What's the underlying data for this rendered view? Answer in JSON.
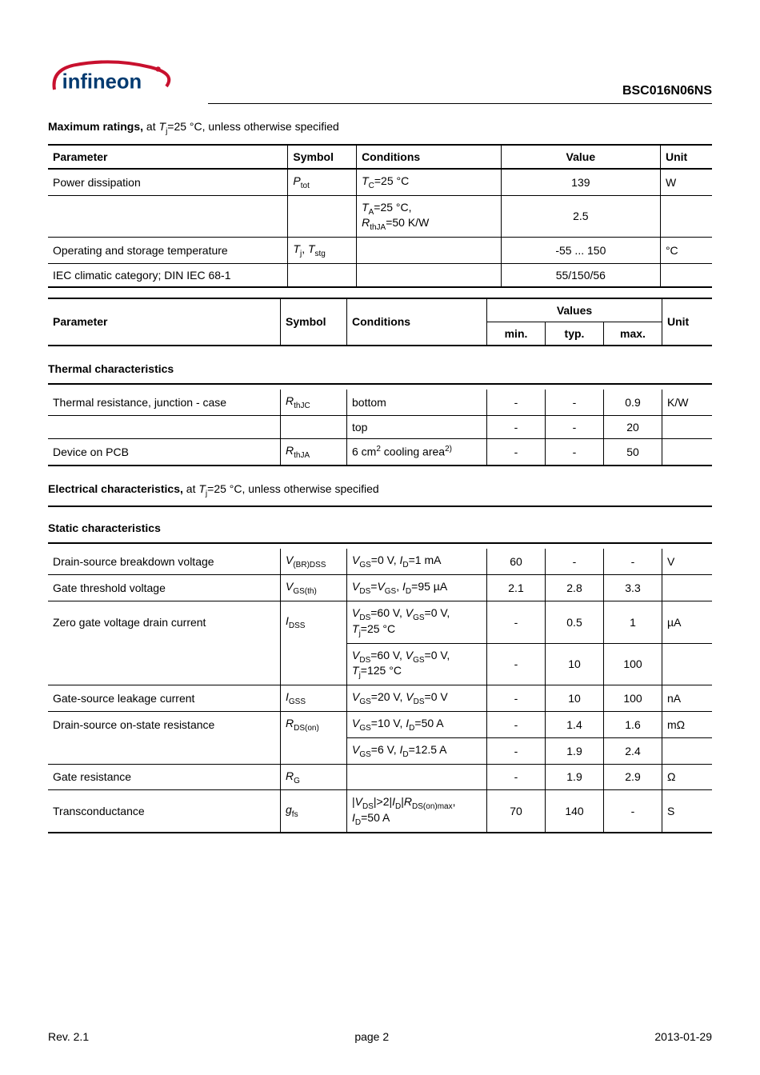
{
  "header": {
    "partnum": "BSC016N06NS"
  },
  "section_maxratings": {
    "title_b": "Maximum ratings,",
    "title_rest": " at ",
    "title_sym": "T",
    "title_sub": "j",
    "title_after": "=25 °C, unless otherwise specified",
    "cols": {
      "parameter": "Parameter",
      "symbol": "Symbol",
      "conditions": "Conditions",
      "value": "Value",
      "unit": "Unit"
    },
    "rows": [
      {
        "param": "Power dissipation",
        "sym_i": "P",
        "sym_sub": "tot",
        "cond_html": "<span class='ital'>T</span><span class='sub'>C</span>=25 °C",
        "value": "139",
        "unit": "W"
      },
      {
        "param": "",
        "sym_i": "",
        "sym_sub": "",
        "cond_html": "<span class='ital'>T</span><span class='sub'>A</span>=25 °C,<br><span class='ital'>R</span><span class='sub'>thJA</span>=50 K/W",
        "value": "2.5",
        "unit": ""
      },
      {
        "param": "Operating and storage temperature",
        "sym_html": "<span class='ital'>T</span><span class='sub'>j</span>, <span class='ital'>T</span><span class='sub'>stg</span>",
        "cond_html": "",
        "value": "-55 ... 150",
        "unit": "°C"
      },
      {
        "param": "IEC climatic category; DIN IEC 68-1",
        "sym_html": "",
        "cond_html": "",
        "value": "55/150/56",
        "unit": ""
      }
    ]
  },
  "section_values_hdr": {
    "cols": {
      "parameter": "Parameter",
      "symbol": "Symbol",
      "conditions": "Conditions",
      "values": "Values",
      "unit": "Unit",
      "min": "min.",
      "typ": "typ.",
      "max": "max."
    }
  },
  "section_thermal": {
    "title": "Thermal characteristics",
    "rows": [
      {
        "param": "Thermal resistance, junction - case",
        "sym_html": "<span class='ital'>R</span><span class='sub'>thJC</span>",
        "cond": "bottom",
        "min": "-",
        "typ": "-",
        "max": "0.9",
        "unit": "K/W"
      },
      {
        "param": "",
        "sym_html": "",
        "cond": "top",
        "min": "-",
        "typ": "-",
        "max": "20",
        "unit": ""
      },
      {
        "param": "Device on PCB",
        "sym_html": "<span class='ital'>R</span><span class='sub'>thJA</span>",
        "cond_html": "6 cm<span class='sup'>2</span> cooling area<span class='sup'>2)</span>",
        "min": "-",
        "typ": "-",
        "max": "50",
        "unit": ""
      }
    ]
  },
  "section_elec": {
    "title_b": "Electrical characteristics,",
    "title_rest": " at ",
    "title_sym": "T",
    "title_sub": "j",
    "title_after": "=25 °C, unless otherwise specified"
  },
  "section_static": {
    "title": "Static characteristics",
    "rows": [
      {
        "param": "Drain-source breakdown voltage",
        "sym_html": "<span class='ital'>V</span><span class='sub'>(BR)DSS</span>",
        "cond_html": "<span class='ital'>V</span><span class='sub'>GS</span>=0 V, <span class='ital'>I</span><span class='sub'>D</span>=1 mA",
        "min": "60",
        "typ": "-",
        "max": "-",
        "unit": "V"
      },
      {
        "param": "Gate threshold voltage",
        "sym_html": "<span class='ital'>V</span><span class='sub'>GS(th)</span>",
        "cond_html": "<span class='ital'>V</span><span class='sub'>DS</span>=<span class='ital'>V</span><span class='sub'>GS</span>, <span class='ital'>I</span><span class='sub'>D</span>=95 µA",
        "min": "2.1",
        "typ": "2.8",
        "max": "3.3",
        "unit": ""
      },
      {
        "param": "Zero gate voltage drain current",
        "sym_html": "<span class='ital'>I</span><span class='sub'>DSS</span>",
        "cond_html": "<span class='ital'>V</span><span class='sub'>DS</span>=60 V, <span class='ital'>V</span><span class='sub'>GS</span>=0 V,<br><span class='ital'>T</span><span class='sub'>j</span>=25 °C",
        "min": "-",
        "typ": "0.5",
        "max": "1",
        "unit": "µA"
      },
      {
        "param": "",
        "sym_html": "",
        "cond_html": "<span class='ital'>V</span><span class='sub'>DS</span>=60 V, <span class='ital'>V</span><span class='sub'>GS</span>=0 V,<br><span class='ital'>T</span><span class='sub'>j</span>=125 °C",
        "min": "-",
        "typ": "10",
        "max": "100",
        "unit": ""
      },
      {
        "param": "Gate-source leakage current",
        "sym_html": "<span class='ital'>I</span><span class='sub'>GSS</span>",
        "cond_html": "<span class='ital'>V</span><span class='sub'>GS</span>=20 V, <span class='ital'>V</span><span class='sub'>DS</span>=0 V",
        "min": "-",
        "typ": "10",
        "max": "100",
        "unit": "nA"
      },
      {
        "param": "Drain-source on-state resistance",
        "sym_html": "<span class='ital'>R</span><span class='sub'>DS(on)</span>",
        "cond_html": "<span class='ital'>V</span><span class='sub'>GS</span>=10 V, <span class='ital'>I</span><span class='sub'>D</span>=50 A",
        "min": "-",
        "typ": "1.4",
        "max": "1.6",
        "unit": "mΩ"
      },
      {
        "param": "",
        "sym_html": "",
        "cond_html": "<span class='ital'>V</span><span class='sub'>GS</span>=6 V, <span class='ital'>I</span><span class='sub'>D</span>=12.5 A",
        "min": "-",
        "typ": "1.9",
        "max": "2.4",
        "unit": ""
      },
      {
        "param": "Gate resistance",
        "sym_html": "<span class='ital'>R</span><span class='sub'>G</span>",
        "cond_html": "",
        "min": "-",
        "typ": "1.9",
        "max": "2.9",
        "unit": "Ω"
      },
      {
        "param": "Transconductance",
        "sym_html": "<span class='ital'>g</span><span class='sub'>fs</span>",
        "cond_html": "|<span class='ital'>V</span><span class='sub'>DS</span>|>2|<span class='ital'>I</span><span class='sub'>D</span>|<span class='ital'>R</span><span class='sub'>DS(on)max</span>,<br><span class='ital'>I</span><span class='sub'>D</span>=50 A",
        "min": "70",
        "typ": "140",
        "max": "-",
        "unit": "S"
      }
    ]
  },
  "footer": {
    "rev": "Rev. 2.1",
    "page": "page 2",
    "date": "2013-01-29"
  }
}
